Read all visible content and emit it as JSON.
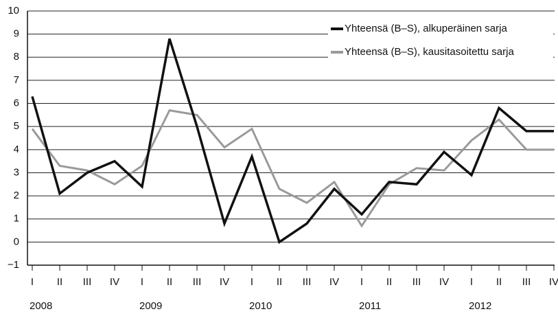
{
  "chart_data": {
    "type": "line",
    "categories": [
      "I",
      "II",
      "III",
      "IV",
      "I",
      "II",
      "III",
      "IV",
      "I",
      "II",
      "III",
      "IV",
      "I",
      "II",
      "III",
      "IV",
      "I",
      "II",
      "III",
      "IV"
    ],
    "years": [
      "2008",
      "2009",
      "2010",
      "2011",
      "2012"
    ],
    "series": [
      {
        "name": "Yhteensä (B–S), alkuperäinen sarja",
        "color": "#111111",
        "values": [
          6.3,
          2.1,
          3.0,
          3.5,
          2.4,
          8.8,
          5.0,
          0.8,
          3.7,
          0.0,
          0.8,
          2.3,
          1.2,
          2.6,
          2.5,
          3.9,
          2.9,
          5.8,
          4.8,
          4.8
        ]
      },
      {
        "name": "Yhteensä (B–S), kausitasoitettu sarja",
        "color": "#9a9a9a",
        "values": [
          4.9,
          3.3,
          3.1,
          2.5,
          3.3,
          5.7,
          5.5,
          4.1,
          4.9,
          2.3,
          1.7,
          2.6,
          0.7,
          2.5,
          3.2,
          3.1,
          4.4,
          5.3,
          4.0,
          4.0
        ]
      }
    ],
    "ylim": [
      -1,
      10
    ],
    "yticks": [
      {
        "value": -1,
        "label": "−1"
      },
      0,
      1,
      2,
      3,
      4,
      5,
      6,
      7,
      8,
      9,
      10
    ],
    "grid": true,
    "legend": "top-right"
  }
}
